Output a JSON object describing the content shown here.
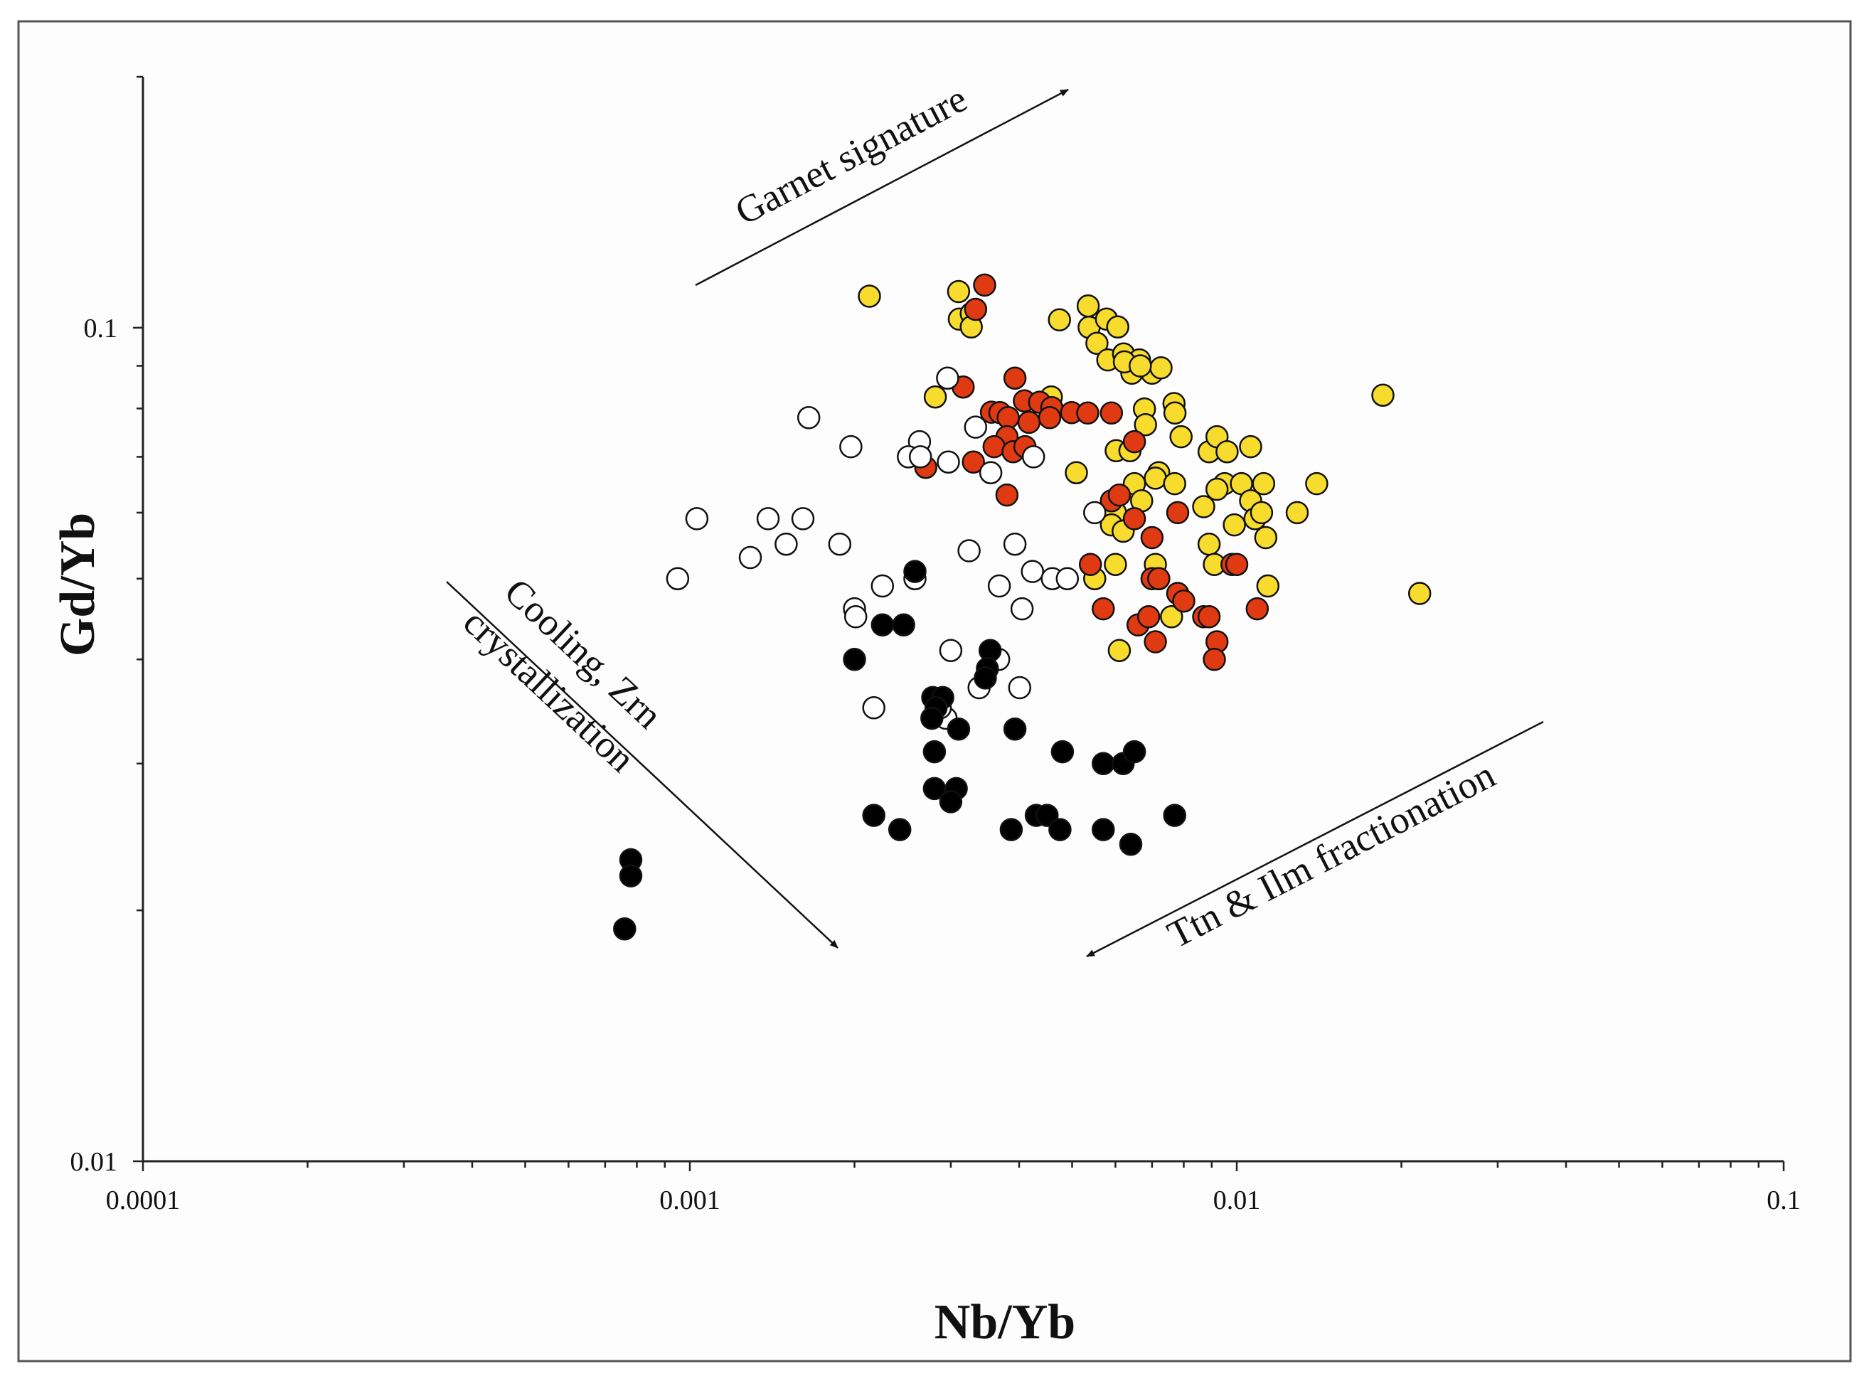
{
  "chart_data": {
    "type": "scatter",
    "title": "",
    "xlabel": "Nb/Yb",
    "ylabel": "Gd/Yb",
    "xscale": "log",
    "yscale": "log",
    "xlim": [
      0.0001,
      0.1
    ],
    "ylim": [
      0.01,
      0.2
    ],
    "x_ticks": [
      "0.0001",
      "0.001",
      "0.01",
      "0.1"
    ],
    "y_ticks": [
      "0.01",
      "0.1"
    ],
    "grid": false,
    "legend": "none",
    "colors": {
      "yellow": "#f7dc2e",
      "red": "#e03a12",
      "white": "#ffffff",
      "black": "#000000",
      "outline": "#111111"
    },
    "annotations": {
      "garnet": "Garnet signature",
      "cooling_line1": "Cooling, Zrn",
      "cooling_line2": "crystallization",
      "ttn": "Ttn & Ilm fractionation"
    },
    "series": [
      {
        "fill": "yellow",
        "points": [
          [
            0.00213,
            0.1091
          ],
          [
            0.0031,
            0.1105
          ],
          [
            0.00311,
            0.1024
          ],
          [
            0.00327,
            0.104
          ],
          [
            0.00327,
            0.1002
          ],
          [
            0.00281,
            0.0826
          ],
          [
            0.00458,
            0.0826
          ],
          [
            0.00474,
            0.1022
          ],
          [
            0.00535,
            0.1062
          ],
          [
            0.00537,
            0.1001
          ],
          [
            0.00555,
            0.0958
          ],
          [
            0.00578,
            0.1024
          ],
          [
            0.00606,
            0.1002
          ],
          [
            0.00581,
            0.0915
          ],
          [
            0.00621,
            0.093
          ],
          [
            0.00643,
            0.0882
          ],
          [
            0.00664,
            0.0915
          ],
          [
            0.007,
            0.0882
          ],
          [
            0.00727,
            0.0895
          ],
          [
            0.00623,
            0.091
          ],
          [
            0.00666,
            0.09
          ],
          [
            0.00768,
            0.0811
          ],
          [
            0.00678,
            0.0799
          ],
          [
            0.00771,
            0.079
          ],
          [
            0.00681,
            0.0765
          ],
          [
            0.00791,
            0.074
          ],
          [
            0.00602,
            0.0712
          ],
          [
            0.00638,
            0.0712
          ],
          [
            0.00509,
            0.067
          ],
          [
            0.0072,
            0.067
          ],
          [
            0.0071,
            0.066
          ],
          [
            0.0065,
            0.065
          ],
          [
            0.0077,
            0.065
          ],
          [
            0.0067,
            0.062
          ],
          [
            0.006,
            0.06
          ],
          [
            0.0059,
            0.058
          ],
          [
            0.0062,
            0.057
          ],
          [
            0.006,
            0.052
          ],
          [
            0.0055,
            0.05
          ],
          [
            0.0071,
            0.052
          ],
          [
            0.0072,
            0.05
          ],
          [
            0.0076,
            0.045
          ],
          [
            0.0061,
            0.041
          ],
          [
            0.0087,
            0.061
          ],
          [
            0.0089,
            0.071
          ],
          [
            0.0092,
            0.074
          ],
          [
            0.0096,
            0.071
          ],
          [
            0.0106,
            0.072
          ],
          [
            0.0095,
            0.065
          ],
          [
            0.0092,
            0.064
          ],
          [
            0.0102,
            0.065
          ],
          [
            0.0112,
            0.065
          ],
          [
            0.0106,
            0.062
          ],
          [
            0.0099,
            0.058
          ],
          [
            0.0108,
            0.059
          ],
          [
            0.0111,
            0.06
          ],
          [
            0.0113,
            0.056
          ],
          [
            0.0089,
            0.055
          ],
          [
            0.0091,
            0.052
          ],
          [
            0.0114,
            0.049
          ],
          [
            0.0129,
            0.06
          ],
          [
            0.014,
            0.065
          ],
          [
            0.0185,
            0.083
          ],
          [
            0.0216,
            0.048
          ]
        ]
      },
      {
        "fill": "red",
        "points": [
          [
            0.00346,
            0.1125
          ],
          [
            0.00333,
            0.1052
          ],
          [
            0.00316,
            0.0849
          ],
          [
            0.00393,
            0.087
          ],
          [
            0.00409,
            0.0817
          ],
          [
            0.00436,
            0.0814
          ],
          [
            0.00356,
            0.0792
          ],
          [
            0.00369,
            0.0791
          ],
          [
            0.00382,
            0.078
          ],
          [
            0.00459,
            0.0802
          ],
          [
            0.00499,
            0.0791
          ],
          [
            0.00534,
            0.079
          ],
          [
            0.0059,
            0.079
          ],
          [
            0.00455,
            0.078
          ],
          [
            0.00417,
            0.077
          ],
          [
            0.0038,
            0.074
          ],
          [
            0.0036,
            0.072
          ],
          [
            0.0039,
            0.071
          ],
          [
            0.0041,
            0.072
          ],
          [
            0.0033,
            0.069
          ],
          [
            0.0027,
            0.068
          ],
          [
            0.0038,
            0.063
          ],
          [
            0.0065,
            0.073
          ],
          [
            0.0059,
            0.062
          ],
          [
            0.0061,
            0.063
          ],
          [
            0.0065,
            0.059
          ],
          [
            0.007,
            0.056
          ],
          [
            0.0078,
            0.06
          ],
          [
            0.0054,
            0.052
          ],
          [
            0.007,
            0.05
          ],
          [
            0.0072,
            0.05
          ],
          [
            0.0078,
            0.048
          ],
          [
            0.008,
            0.047
          ],
          [
            0.0087,
            0.045
          ],
          [
            0.0089,
            0.045
          ],
          [
            0.0057,
            0.046
          ],
          [
            0.0066,
            0.044
          ],
          [
            0.0069,
            0.045
          ],
          [
            0.0071,
            0.042
          ],
          [
            0.0092,
            0.042
          ],
          [
            0.0091,
            0.04
          ],
          [
            0.0098,
            0.052
          ],
          [
            0.01,
            0.052
          ],
          [
            0.0109,
            0.046
          ]
        ]
      },
      {
        "fill": "white",
        "points": [
          [
            0.00296,
            0.087
          ],
          [
            0.00165,
            0.078
          ],
          [
            0.00197,
            0.072
          ],
          [
            0.00263,
            0.073
          ],
          [
            0.00333,
            0.076
          ],
          [
            0.00251,
            0.07
          ],
          [
            0.00264,
            0.07
          ],
          [
            0.00297,
            0.069
          ],
          [
            0.00355,
            0.067
          ],
          [
            0.00425,
            0.07
          ],
          [
            0.0055,
            0.06
          ],
          [
            0.00103,
            0.059
          ],
          [
            0.00139,
            0.059
          ],
          [
            0.00161,
            0.059
          ],
          [
            0.0015,
            0.055
          ],
          [
            0.00188,
            0.055
          ],
          [
            0.00129,
            0.053
          ],
          [
            0.00095,
            0.05
          ],
          [
            0.00324,
            0.054
          ],
          [
            0.00393,
            0.055
          ],
          [
            0.00423,
            0.051
          ],
          [
            0.0046,
            0.05
          ],
          [
            0.0049,
            0.05
          ],
          [
            0.00368,
            0.049
          ],
          [
            0.00258,
            0.05
          ],
          [
            0.00225,
            0.049
          ],
          [
            0.002,
            0.046
          ],
          [
            0.00201,
            0.045
          ],
          [
            0.00405,
            0.046
          ],
          [
            0.003,
            0.041
          ],
          [
            0.00367,
            0.04
          ],
          [
            0.00338,
            0.037
          ],
          [
            0.00401,
            0.037
          ],
          [
            0.00217,
            0.035
          ],
          [
            0.00294,
            0.034
          ],
          [
            0.00287,
            0.035
          ]
        ]
      },
      {
        "fill": "black",
        "points": [
          [
            0.00258,
            0.051
          ],
          [
            0.00225,
            0.044
          ],
          [
            0.00246,
            0.044
          ],
          [
            0.002,
            0.04
          ],
          [
            0.00354,
            0.041
          ],
          [
            0.0035,
            0.039
          ],
          [
            0.00347,
            0.038
          ],
          [
            0.00278,
            0.036
          ],
          [
            0.0029,
            0.036
          ],
          [
            0.00282,
            0.035
          ],
          [
            0.00277,
            0.034
          ],
          [
            0.00393,
            0.033
          ],
          [
            0.0031,
            0.033
          ],
          [
            0.0028,
            0.031
          ],
          [
            0.0048,
            0.031
          ],
          [
            0.0057,
            0.03
          ],
          [
            0.0062,
            0.03
          ],
          [
            0.0065,
            0.031
          ],
          [
            0.0028,
            0.028
          ],
          [
            0.00307,
            0.028
          ],
          [
            0.003,
            0.027
          ],
          [
            0.0043,
            0.026
          ],
          [
            0.0045,
            0.026
          ],
          [
            0.00217,
            0.026
          ],
          [
            0.00242,
            0.025
          ],
          [
            0.00387,
            0.025
          ],
          [
            0.00475,
            0.025
          ],
          [
            0.0057,
            0.025
          ],
          [
            0.0064,
            0.024
          ],
          [
            0.0077,
            0.026
          ],
          [
            0.00078,
            0.023
          ],
          [
            0.00078,
            0.022
          ],
          [
            0.00076,
            0.019
          ]
        ]
      }
    ]
  }
}
